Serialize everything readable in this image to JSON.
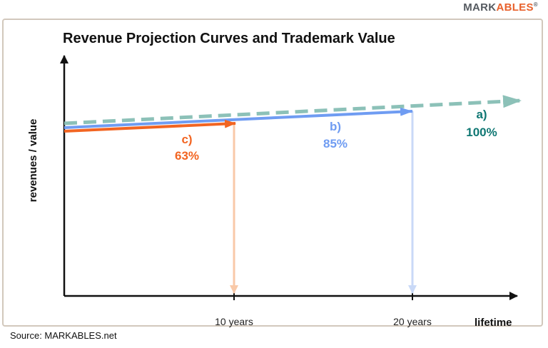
{
  "brand": {
    "part1": "MARK",
    "part2": "ABLES",
    "mark": "®"
  },
  "source": "Source: MARKABLES.net",
  "chart_data": {
    "type": "line",
    "title": "Revenue Projection Curves and Trademark Value",
    "ylabel": "revenues / value",
    "xlabel": "lifetime",
    "x_ticks": [
      "10 years",
      "20 years"
    ],
    "grid": false,
    "series": [
      {
        "id": "a",
        "label": "a)",
        "value": "100%",
        "color": "#8cc1b8",
        "label_color": "#0f7773",
        "style": "dashed",
        "x_end": null
      },
      {
        "id": "b",
        "label": "b)",
        "value": "85%",
        "color": "#6f9cf2",
        "label_color": "#6f9cf2",
        "drop_color": "#c9d9f7",
        "style": "solid",
        "x_end": 20
      },
      {
        "id": "c",
        "label": "c)",
        "value": "63%",
        "color": "#f26522",
        "label_color": "#f26522",
        "drop_color": "#f9c9a8",
        "style": "solid",
        "x_end": 10
      }
    ]
  }
}
